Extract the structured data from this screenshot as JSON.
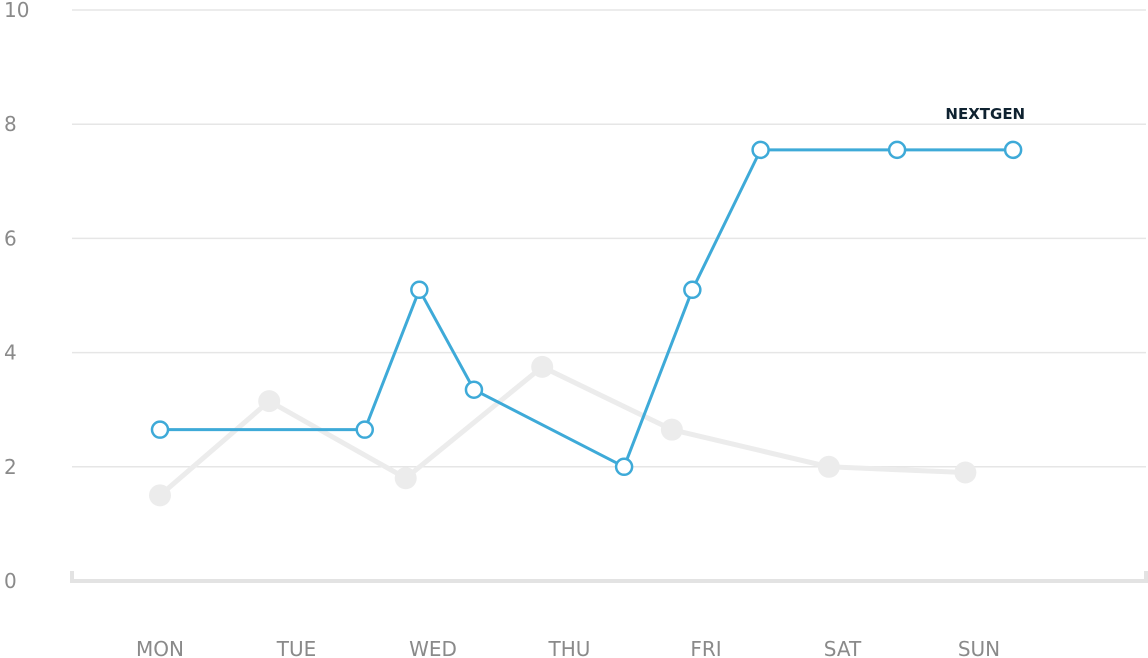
{
  "chart_data": {
    "type": "line",
    "title": "",
    "xlabel": "",
    "ylabel": "",
    "ylim": [
      0,
      10
    ],
    "y_ticks": [
      "0",
      "2",
      "4",
      "6",
      "8",
      "10"
    ],
    "categories": [
      "MON",
      "TUE",
      "WED",
      "THU",
      "FRI",
      "SAT",
      "SUN"
    ],
    "grid": true,
    "series": [
      {
        "name": "",
        "color": "#ececec",
        "style": "filled-markers",
        "x": [
          0.0,
          0.8,
          1.8,
          2.8,
          3.75,
          4.9,
          5.9
        ],
        "y": [
          1.5,
          3.15,
          1.8,
          3.75,
          2.65,
          2.0,
          1.9
        ]
      },
      {
        "name": "NEXTGEN",
        "color": "#3eaad8",
        "style": "hollow-markers",
        "x": [
          0.0,
          1.5,
          1.9,
          2.3,
          3.4,
          3.9,
          4.4,
          5.4,
          6.25
        ],
        "y": [
          2.65,
          2.65,
          5.1,
          3.35,
          2.0,
          5.1,
          7.55,
          7.55,
          7.55
        ]
      }
    ]
  }
}
